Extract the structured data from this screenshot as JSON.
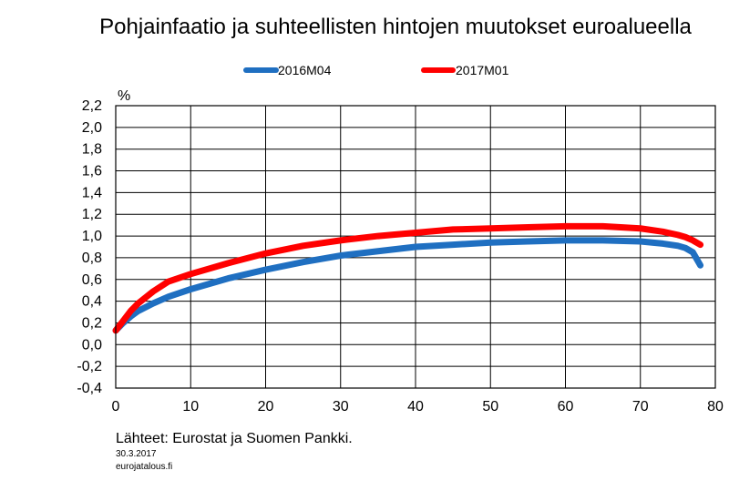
{
  "chart_data": {
    "type": "line",
    "title": "Pohjainfaatio ja suhteellisten hintojen muutokset euroalueella",
    "ylabel": "%",
    "xlabel": "",
    "xlim": [
      0,
      80
    ],
    "ylim": [
      -0.4,
      2.2
    ],
    "xticks": [
      0,
      10,
      20,
      30,
      40,
      50,
      60,
      70,
      80
    ],
    "yticks": [
      -0.4,
      -0.2,
      0.0,
      0.2,
      0.4,
      0.6,
      0.8,
      1.0,
      1.2,
      1.4,
      1.6,
      1.8,
      2.0,
      2.2
    ],
    "xtick_labels": [
      "0",
      "10",
      "20",
      "30",
      "40",
      "50",
      "60",
      "70",
      "80"
    ],
    "ytick_labels": [
      "-0,4",
      "-0,2",
      "0,0",
      "0,2",
      "0,4",
      "0,6",
      "0,8",
      "1,0",
      "1,2",
      "1,4",
      "1,6",
      "1,8",
      "2,0",
      "2,2"
    ],
    "grid": true,
    "legend_position": "top",
    "series": [
      {
        "name": "2016M04",
        "color": "#1f6fc1",
        "x": [
          0,
          1,
          2,
          3,
          5,
          7,
          10,
          15,
          20,
          25,
          30,
          35,
          40,
          45,
          50,
          55,
          60,
          65,
          70,
          73,
          75,
          76,
          77,
          78
        ],
        "y": [
          0.13,
          0.2,
          0.26,
          0.31,
          0.38,
          0.44,
          0.51,
          0.61,
          0.69,
          0.76,
          0.82,
          0.86,
          0.9,
          0.92,
          0.94,
          0.95,
          0.96,
          0.96,
          0.95,
          0.93,
          0.91,
          0.89,
          0.85,
          0.73
        ]
      },
      {
        "name": "2017M01",
        "color": "#ff0000",
        "x": [
          0,
          1,
          2,
          3,
          5,
          7,
          10,
          15,
          20,
          25,
          30,
          35,
          40,
          45,
          50,
          55,
          60,
          65,
          70,
          73,
          75,
          76,
          77,
          78
        ],
        "y": [
          0.13,
          0.22,
          0.31,
          0.38,
          0.49,
          0.58,
          0.65,
          0.75,
          0.84,
          0.91,
          0.96,
          1.0,
          1.03,
          1.06,
          1.07,
          1.08,
          1.09,
          1.09,
          1.07,
          1.04,
          1.01,
          0.99,
          0.96,
          0.92
        ]
      }
    ]
  },
  "footer": {
    "source": "Lähteet: Eurostat ja Suomen Pankki.",
    "date": "30.3.2017",
    "site": "eurojatalous.fi"
  }
}
